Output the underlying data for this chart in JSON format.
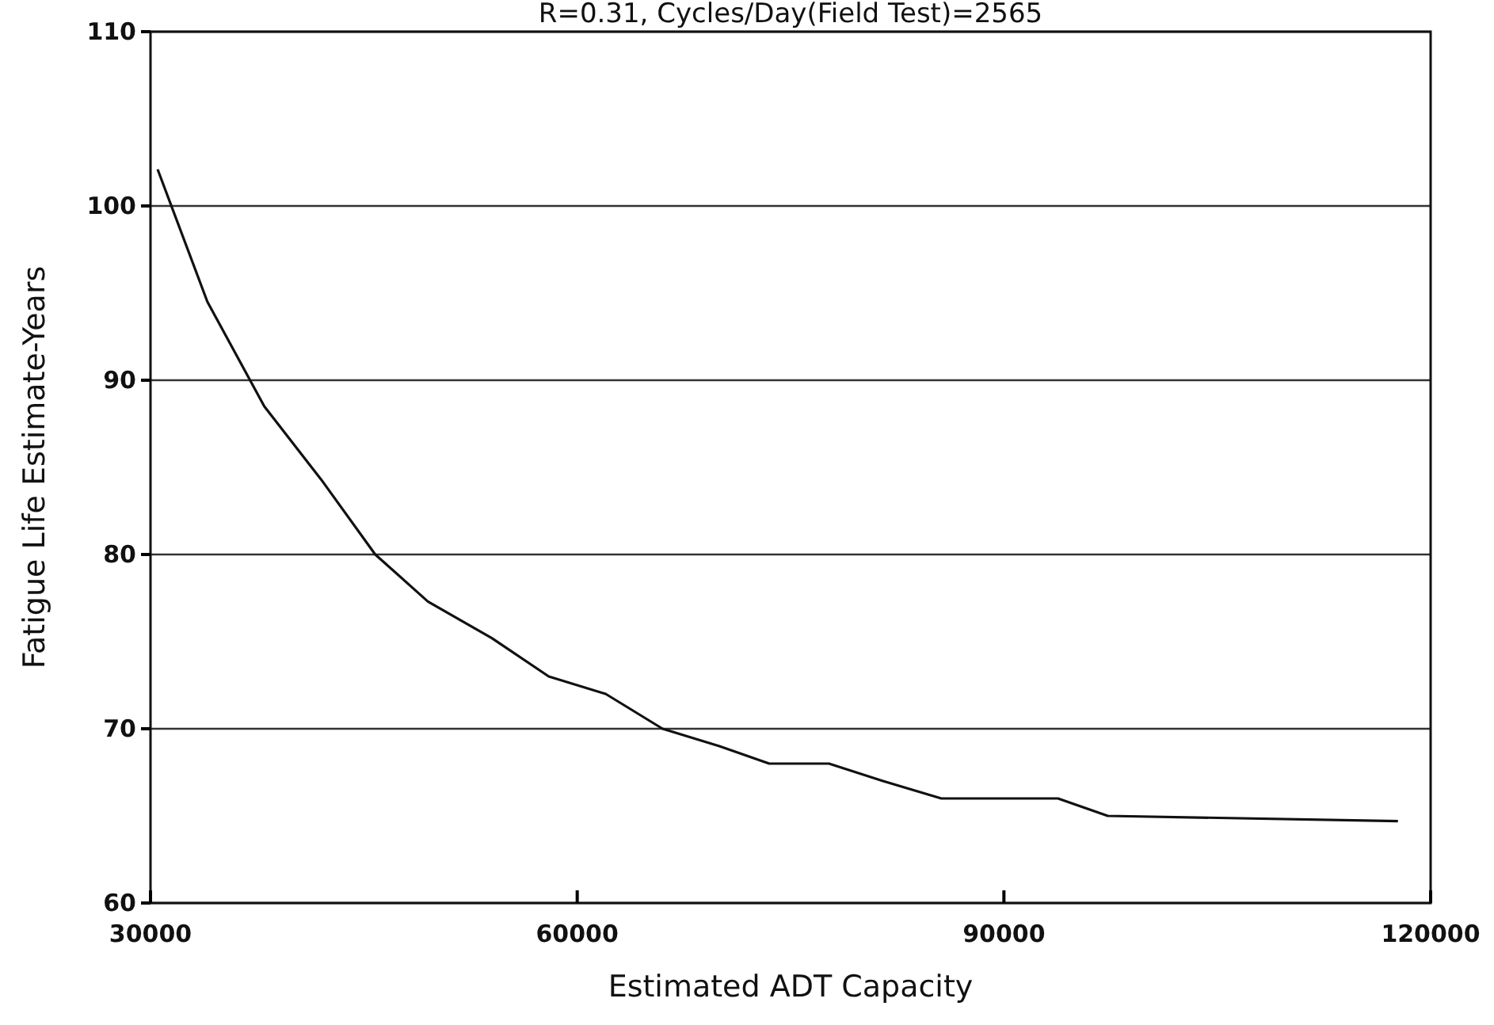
{
  "chart_data": {
    "type": "line",
    "title": "R=0.31, Cycles/Day(Field Test)=2565",
    "xlabel": "Estimated ADT Capacity",
    "ylabel": "Fatigue Life Estimate-Years",
    "x": [
      30500,
      34000,
      38000,
      42000,
      45800,
      49500,
      54000,
      58000,
      62000,
      66000,
      70000,
      73500,
      77700,
      81500,
      85600,
      93800,
      97300,
      117700
    ],
    "series": [
      {
        "color": "#111111",
        "values": [
          102.1,
          94.5,
          88.5,
          84.3,
          80,
          77.3,
          75.2,
          73,
          72,
          70,
          69,
          68,
          68,
          67,
          66,
          66,
          65,
          64.7
        ]
      }
    ],
    "xlim": [
      30000,
      120000
    ],
    "xticks": [
      30000,
      60000,
      90000,
      120000
    ],
    "ylim": [
      60,
      110
    ],
    "yticks": [
      60,
      70,
      80,
      90,
      100,
      110
    ],
    "grid": "y",
    "marker": "none",
    "line_style": "solid"
  }
}
